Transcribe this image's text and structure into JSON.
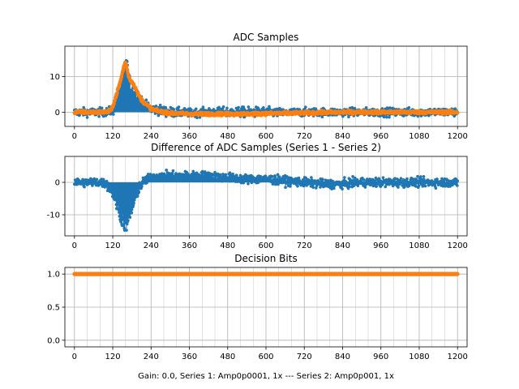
{
  "chart_data": [
    {
      "type": "scatter",
      "title": "ADC Samples",
      "xlim": [
        -30,
        1230
      ],
      "ylim": [
        -4,
        18.5
      ],
      "xticks": [
        0,
        120,
        240,
        360,
        480,
        600,
        720,
        840,
        960,
        1080,
        1200
      ],
      "yticks": [
        0,
        10
      ],
      "grid": true,
      "series": [
        {
          "color": "#1f77b4",
          "style": "stem",
          "x": [
            0,
            60,
            100,
            120,
            130,
            140,
            150,
            155,
            160,
            165,
            170,
            175,
            180,
            190,
            200,
            220,
            240,
            300,
            360,
            420,
            480,
            540,
            600,
            660,
            720,
            780,
            840,
            900,
            960,
            1020,
            1080,
            1140,
            1200
          ],
          "center": [
            0,
            0,
            0,
            0.5,
            2,
            5,
            8,
            11,
            13,
            12,
            9,
            7,
            6,
            5,
            4,
            2,
            1,
            0,
            -0.2,
            0,
            0,
            0,
            0,
            -0.2,
            0,
            0,
            0,
            0,
            0,
            0,
            0,
            0,
            0
          ],
          "spread": [
            2.5,
            2.5,
            2.5,
            3,
            4,
            5,
            6,
            6,
            6,
            6,
            6,
            5,
            5,
            4,
            4,
            3,
            3,
            3,
            2.5,
            2.5,
            3,
            3,
            3,
            2.5,
            2.5,
            2.5,
            2.5,
            2.5,
            2.5,
            2.5,
            2.5,
            2.5,
            2.5
          ]
        },
        {
          "color": "#ff7f0e",
          "style": "line",
          "x": [
            0,
            60,
            100,
            115,
            125,
            135,
            145,
            150,
            155,
            160,
            165,
            170,
            175,
            180,
            190,
            200,
            210,
            220,
            240,
            260,
            300,
            360,
            420,
            480,
            540,
            600,
            660,
            720,
            780,
            840,
            900,
            960,
            1020,
            1080,
            1140,
            1200
          ],
          "y": [
            0,
            0,
            0,
            0.5,
            3,
            6,
            9,
            11,
            13,
            14,
            12,
            10,
            9,
            8.5,
            7,
            5,
            3.5,
            2.5,
            1,
            0.3,
            -0.3,
            -0.5,
            -0.5,
            -0.5,
            -0.5,
            -0.4,
            -0.3,
            -0.2,
            -0.1,
            0,
            0,
            0,
            0,
            0,
            0,
            0
          ],
          "spread": 1.2
        }
      ]
    },
    {
      "type": "scatter",
      "title": "Difference of ADC Samples (Series 1 - Series 2)",
      "xlim": [
        -30,
        1230
      ],
      "ylim": [
        -16.5,
        8
      ],
      "xticks": [
        0,
        120,
        240,
        360,
        480,
        600,
        720,
        840,
        960,
        1080,
        1200
      ],
      "yticks": [
        -10,
        0
      ],
      "grid": true,
      "series": [
        {
          "color": "#1f77b4",
          "style": "stem",
          "x": [
            0,
            40,
            80,
            100,
            120,
            130,
            140,
            150,
            160,
            170,
            180,
            190,
            200,
            220,
            240,
            280,
            320,
            360,
            420,
            480,
            540,
            600,
            660,
            720,
            780,
            840,
            900,
            960,
            1020,
            1080,
            1140,
            1200
          ],
          "center": [
            0,
            0,
            0,
            -0.5,
            -3,
            -6,
            -9,
            -11,
            -13,
            -11,
            -8,
            -5,
            -2,
            0.5,
            1.5,
            2,
            2,
            2,
            2,
            1.5,
            1,
            1,
            0.5,
            0,
            -0.5,
            -0.5,
            0,
            0,
            0,
            0,
            0,
            0
          ],
          "spread": [
            3,
            3,
            3,
            3,
            4,
            5,
            5,
            6,
            6,
            6,
            5,
            5,
            4,
            3,
            3,
            3,
            3,
            3,
            3,
            3,
            3,
            3,
            3,
            3,
            3,
            3,
            3,
            3,
            3,
            3,
            3,
            3
          ]
        }
      ]
    },
    {
      "type": "scatter",
      "title": "Decision Bits",
      "xlim": [
        -30,
        1230
      ],
      "ylim": [
        -0.1,
        1.1
      ],
      "xticks": [
        0,
        120,
        240,
        360,
        480,
        600,
        720,
        840,
        960,
        1080,
        1200
      ],
      "yticks": [
        0.0,
        0.5,
        1.0
      ],
      "ytick_labels": [
        "0.0",
        "0.5",
        "1.0"
      ],
      "grid": true,
      "xlabel": "Gain: 0.0, Series 1: Amp0p0001, 1x --- Series 2: Amp0p001, 1x",
      "series": [
        {
          "color": "#1f77b4",
          "style": "constant",
          "x": [
            0,
            1200
          ],
          "y": 1.0
        },
        {
          "color": "#ff7f0e",
          "style": "constant",
          "x": [
            0,
            1200
          ],
          "y": 1.0
        }
      ]
    }
  ]
}
